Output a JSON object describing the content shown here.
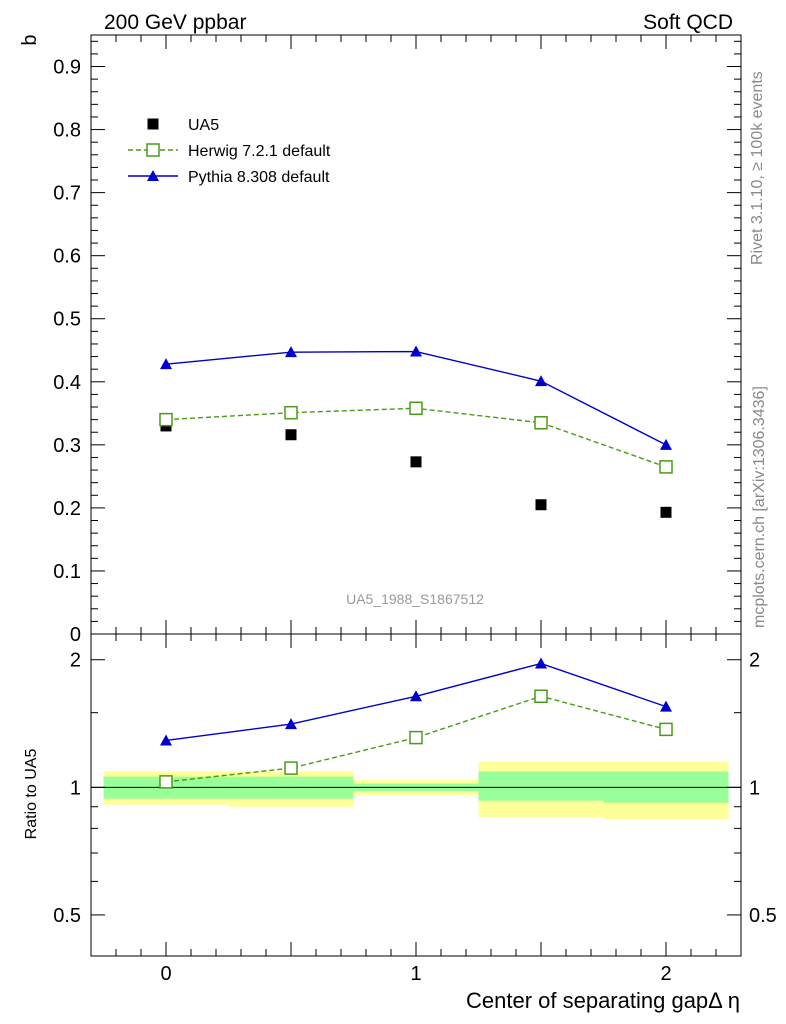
{
  "header": {
    "left_title": "200 GeV ppbar",
    "right_title": "Soft QCD"
  },
  "side_labels": {
    "rivet": "Rivet 3.1.10, ≥ 100k events",
    "mcplots": "mcplots.cern.ch [arXiv:1306.3436]"
  },
  "analysis_label": "UA5_1988_S1867512",
  "colors": {
    "data": "#000000",
    "herwig": "#4a9a1a",
    "pythia": "#0000cc",
    "band_inner": "#99ff99",
    "band_outer": "#ffff99"
  },
  "chart_data": [
    {
      "type": "scatter",
      "title": "",
      "xlabel": "",
      "ylabel": "b",
      "xlim": [
        -0.3,
        2.3
      ],
      "ylim": [
        0,
        0.95
      ],
      "yticks": [
        "0",
        "0.1",
        "0.2",
        "0.3",
        "0.4",
        "0.5",
        "0.6",
        "0.7",
        "0.8",
        "0.9"
      ],
      "x": [
        0,
        0.5,
        1,
        1.5,
        2
      ],
      "series": [
        {
          "name": "UA5",
          "values": [
            0.33,
            0.316,
            0.273,
            0.205,
            0.193
          ]
        },
        {
          "name": "Herwig 7.2.1 default",
          "values": [
            0.34,
            0.351,
            0.358,
            0.335,
            0.265
          ]
        },
        {
          "name": "Pythia 8.308 default",
          "values": [
            0.428,
            0.447,
            0.448,
            0.401,
            0.3
          ]
        }
      ],
      "legend": "top-left"
    },
    {
      "type": "line",
      "title": "",
      "xlabel": "Center of separating gapΔ η",
      "ylabel": "Ratio to UA5",
      "xlim": [
        -0.3,
        2.3
      ],
      "ylim": [
        0.4,
        2.3
      ],
      "log_y": true,
      "xticks": [
        "0",
        "1",
        "2"
      ],
      "yticks": [
        "0.5",
        "1",
        "2"
      ],
      "x": [
        0,
        0.5,
        1,
        1.5,
        2
      ],
      "series": [
        {
          "name": "Herwig 7.2.1 default",
          "values": [
            1.03,
            1.11,
            1.31,
            1.64,
            1.37
          ]
        },
        {
          "name": "Pythia 8.308 default",
          "values": [
            1.29,
            1.41,
            1.64,
            1.96,
            1.55
          ]
        }
      ],
      "uncertainty_bands": [
        {
          "x_range": [
            -0.25,
            0.25
          ],
          "inner": [
            0.94,
            1.06
          ],
          "outer": [
            0.91,
            1.09
          ]
        },
        {
          "x_range": [
            0.25,
            0.75
          ],
          "inner": [
            0.94,
            1.06
          ],
          "outer": [
            0.9,
            1.09
          ]
        },
        {
          "x_range": [
            0.75,
            1.25
          ],
          "inner": [
            0.98,
            1.02
          ],
          "outer": [
            0.96,
            1.04
          ]
        },
        {
          "x_range": [
            1.25,
            1.75
          ],
          "inner": [
            0.93,
            1.09
          ],
          "outer": [
            0.85,
            1.15
          ]
        },
        {
          "x_range": [
            1.75,
            2.25
          ],
          "inner": [
            0.92,
            1.09
          ],
          "outer": [
            0.84,
            1.15
          ]
        }
      ]
    }
  ]
}
